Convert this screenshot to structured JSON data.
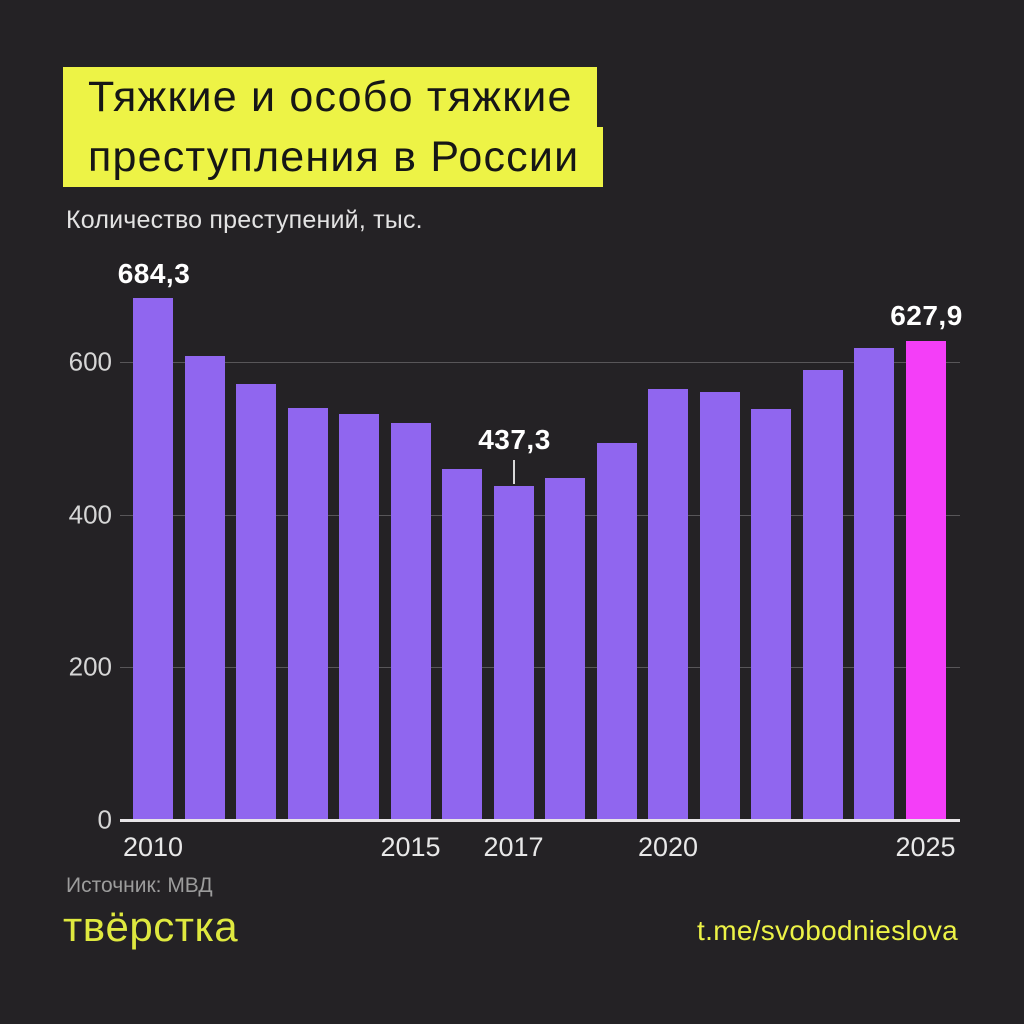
{
  "title": {
    "line1": "Тяжкие и особо тяжкие",
    "line2": "преступления в России"
  },
  "subtitle": "Количество преступений, тыс.",
  "source": "Источник: МВД",
  "logo": "твёрстка",
  "link": "t.me/svobodnieslova",
  "colors": {
    "background": "#242225",
    "accent_yellow": "#edf346",
    "logo_yellow": "#dfe93f",
    "bar_purple": "#9066ef",
    "bar_magenta": "#f43ef8",
    "label_white": "#ffffff"
  },
  "chart_data": {
    "type": "bar",
    "title": "Тяжкие и особо тяжкие преступления в России",
    "ylabel": "Количество преступений, тыс.",
    "categories": [
      2010,
      2011,
      2012,
      2013,
      2014,
      2015,
      2016,
      2017,
      2018,
      2019,
      2020,
      2021,
      2022,
      2023,
      2024,
      2025
    ],
    "values": [
      684.3,
      608,
      571,
      540,
      532,
      520,
      460,
      437.3,
      448,
      494,
      565,
      561,
      538,
      590,
      618,
      627.9
    ],
    "highlight_index": 15,
    "bar_color": "#9066ef",
    "highlight_color": "#f43ef8",
    "ylim": [
      0,
      700
    ],
    "yticks": [
      0,
      200,
      400,
      600
    ],
    "grid": "horizontal",
    "xticks": [
      {
        "label": "2010",
        "bar_index": 0
      },
      {
        "label": "2015",
        "bar_index": 5
      },
      {
        "label": "2017",
        "bar_index": 7
      },
      {
        "label": "2020",
        "bar_index": 10
      },
      {
        "label": "2025",
        "bar_index": 15
      }
    ],
    "annotations": [
      {
        "bar_index": 0,
        "text": "684,3",
        "offset_y": -40,
        "callout": false
      },
      {
        "bar_index": 7,
        "text": "437,3",
        "offset_y": -62,
        "callout": true
      },
      {
        "bar_index": 15,
        "text": "627,9",
        "offset_y": -41,
        "callout": false
      }
    ]
  }
}
